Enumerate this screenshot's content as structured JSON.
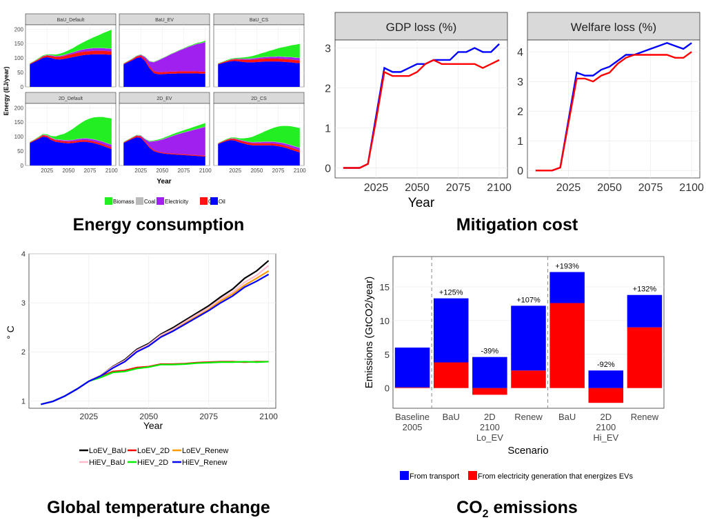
{
  "titles": {
    "energy": "Energy consumption",
    "mitigation": "Mitigation cost",
    "temperature": "Global temperature change",
    "co2_prefix": "CO",
    "co2_sub": "2",
    "co2_suffix": " emissions"
  },
  "chart_data": [
    {
      "id": "energy",
      "type": "area",
      "ylabel": "Energy (EJ/year)",
      "xlabel": "Year",
      "x": [
        2005,
        2010,
        2015,
        2020,
        2025,
        2030,
        2035,
        2040,
        2045,
        2050,
        2055,
        2060,
        2065,
        2070,
        2075,
        2080,
        2085,
        2090,
        2095,
        2100
      ],
      "xticks": [
        2025,
        2050,
        2075,
        2100
      ],
      "yticks": [
        0,
        50,
        100,
        150,
        200
      ],
      "ylim": [
        0,
        215
      ],
      "legend": [
        "Biomass",
        "Coal",
        "Electricity",
        "Gas",
        "Oil"
      ],
      "colors": {
        "Biomass": "#22ee22",
        "Coal": "#bbbbbb",
        "Electricity": "#a020f0",
        "Gas": "#ff1111",
        "Oil": "#0000ff"
      },
      "facets": [
        {
          "name": "BaU_Default",
          "oil": [
            78,
            85,
            92,
            100,
            103,
            100,
            96,
            95,
            97,
            100,
            103,
            106,
            109,
            111,
            112,
            113,
            113,
            113,
            112,
            111
          ],
          "gas": [
            2,
            3,
            4,
            5,
            6,
            7,
            8,
            9,
            10,
            11,
            11,
            12,
            12,
            12,
            12,
            12,
            12,
            12,
            12,
            12
          ],
          "elec": [
            0,
            0,
            0,
            1,
            1,
            2,
            2,
            3,
            3,
            4,
            5,
            6,
            7,
            8,
            9,
            9,
            9,
            9,
            9,
            9
          ],
          "coal": [
            1,
            1,
            1,
            1,
            1,
            1,
            1,
            1,
            1,
            1,
            1,
            1,
            1,
            1,
            1,
            1,
            1,
            1,
            1,
            1
          ],
          "bio": [
            1,
            1,
            2,
            2,
            2,
            3,
            5,
            7,
            9,
            11,
            14,
            18,
            22,
            27,
            32,
            38,
            44,
            51,
            58,
            65
          ]
        },
        {
          "name": "BaU_EV",
          "oil": [
            78,
            85,
            92,
            100,
            103,
            90,
            65,
            48,
            44,
            44,
            45,
            46,
            46,
            47,
            47,
            47,
            47,
            47,
            46,
            46
          ],
          "gas": [
            2,
            3,
            4,
            5,
            6,
            7,
            7,
            7,
            7,
            7,
            7,
            7,
            7,
            7,
            7,
            7,
            7,
            7,
            7,
            7
          ],
          "elec": [
            0,
            0,
            0,
            1,
            2,
            6,
            16,
            30,
            40,
            47,
            53,
            60,
            66,
            72,
            78,
            84,
            89,
            94,
            98,
            102
          ],
          "coal": [
            1,
            1,
            1,
            1,
            1,
            1,
            1,
            1,
            1,
            1,
            1,
            1,
            1,
            1,
            1,
            1,
            1,
            1,
            1,
            1
          ],
          "bio": [
            1,
            1,
            1,
            1,
            1,
            1,
            1,
            1,
            1,
            1,
            1,
            1,
            1,
            1,
            1,
            2,
            2,
            3,
            3,
            4
          ]
        },
        {
          "name": "BaU_CS",
          "oil": [
            78,
            82,
            86,
            89,
            90,
            88,
            86,
            85,
            85,
            86,
            87,
            88,
            88,
            88,
            88,
            87,
            86,
            85,
            83,
            82
          ],
          "gas": [
            2,
            3,
            4,
            5,
            6,
            7,
            8,
            9,
            9,
            10,
            10,
            10,
            10,
            10,
            10,
            10,
            10,
            10,
            10,
            10
          ],
          "elec": [
            0,
            0,
            0,
            1,
            1,
            2,
            3,
            3,
            4,
            4,
            5,
            5,
            6,
            6,
            7,
            7,
            7,
            8,
            8,
            8
          ],
          "coal": [
            1,
            1,
            1,
            1,
            1,
            1,
            1,
            1,
            1,
            1,
            1,
            1,
            1,
            1,
            1,
            1,
            1,
            1,
            1,
            1
          ],
          "bio": [
            1,
            1,
            2,
            2,
            2,
            3,
            4,
            6,
            8,
            10,
            13,
            16,
            20,
            24,
            28,
            32,
            36,
            40,
            44,
            48
          ]
        },
        {
          "name": "2D_Default",
          "oil": [
            78,
            85,
            92,
            100,
            98,
            88,
            82,
            80,
            78,
            77,
            78,
            80,
            82,
            82,
            80,
            77,
            73,
            68,
            62,
            57
          ],
          "gas": [
            2,
            3,
            4,
            5,
            5,
            6,
            6,
            6,
            6,
            6,
            6,
            6,
            6,
            6,
            6,
            6,
            6,
            6,
            6,
            6
          ],
          "elec": [
            0,
            0,
            0,
            1,
            1,
            2,
            2,
            3,
            3,
            4,
            4,
            5,
            5,
            6,
            6,
            7,
            7,
            8,
            8,
            9
          ],
          "coal": [
            1,
            1,
            1,
            1,
            1,
            1,
            1,
            1,
            1,
            1,
            1,
            1,
            1,
            1,
            1,
            1,
            1,
            1,
            1,
            1
          ],
          "bio": [
            1,
            1,
            2,
            2,
            3,
            5,
            10,
            16,
            22,
            30,
            38,
            46,
            54,
            62,
            70,
            76,
            81,
            85,
            88,
            90
          ]
        },
        {
          "name": "2D_EV",
          "oil": [
            78,
            85,
            92,
            98,
            96,
            80,
            62,
            50,
            45,
            42,
            40,
            39,
            38,
            37,
            36,
            35,
            34,
            33,
            32,
            31
          ],
          "gas": [
            2,
            3,
            4,
            5,
            5,
            5,
            4,
            4,
            3,
            3,
            3,
            3,
            3,
            3,
            3,
            3,
            3,
            3,
            3,
            3
          ],
          "elec": [
            0,
            0,
            0,
            1,
            2,
            6,
            16,
            30,
            38,
            45,
            52,
            58,
            64,
            70,
            75,
            80,
            85,
            90,
            95,
            100
          ],
          "coal": [
            1,
            1,
            1,
            1,
            1,
            1,
            1,
            1,
            1,
            1,
            1,
            1,
            1,
            1,
            1,
            1,
            1,
            1,
            1,
            1
          ],
          "bio": [
            1,
            1,
            1,
            1,
            1,
            1,
            2,
            2,
            3,
            3,
            4,
            5,
            6,
            6,
            7,
            8,
            9,
            10,
            11,
            12
          ]
        },
        {
          "name": "2D_CS",
          "oil": [
            74,
            80,
            85,
            88,
            86,
            80,
            76,
            72,
            70,
            70,
            70,
            70,
            70,
            69,
            67,
            64,
            60,
            55,
            50,
            45
          ],
          "gas": [
            2,
            3,
            4,
            5,
            6,
            7,
            7,
            7,
            7,
            7,
            7,
            7,
            7,
            7,
            7,
            7,
            7,
            7,
            7,
            7
          ],
          "elec": [
            0,
            0,
            0,
            1,
            1,
            2,
            2,
            3,
            3,
            4,
            4,
            5,
            5,
            6,
            6,
            7,
            7,
            8,
            8,
            9
          ],
          "coal": [
            1,
            1,
            1,
            1,
            1,
            1,
            1,
            1,
            1,
            1,
            1,
            1,
            1,
            1,
            1,
            1,
            1,
            1,
            1,
            1
          ],
          "bio": [
            1,
            1,
            2,
            2,
            3,
            4,
            8,
            13,
            18,
            24,
            30,
            36,
            42,
            48,
            54,
            58,
            62,
            65,
            67,
            68
          ]
        }
      ]
    },
    {
      "id": "mitigation",
      "type": "line",
      "xlabel": "Year",
      "x": [
        2005,
        2010,
        2015,
        2020,
        2025,
        2030,
        2035,
        2040,
        2045,
        2050,
        2055,
        2060,
        2065,
        2070,
        2075,
        2080,
        2085,
        2090,
        2095,
        2100
      ],
      "xticks": [
        2025,
        2050,
        2075,
        2100
      ],
      "facets": [
        {
          "name": "GDP loss (%)",
          "ylim": [
            0,
            3.2
          ],
          "yticks": [
            0,
            1,
            2,
            3
          ],
          "series": [
            {
              "name": "Blue",
              "color": "#0000ff",
              "values": [
                0,
                0,
                0,
                0.1,
                1.3,
                2.5,
                2.4,
                2.4,
                2.5,
                2.6,
                2.6,
                2.7,
                2.7,
                2.7,
                2.9,
                2.9,
                3.0,
                2.9,
                2.9,
                3.1
              ]
            },
            {
              "name": "Red",
              "color": "#ff0000",
              "values": [
                0,
                0,
                0,
                0.1,
                1.2,
                2.4,
                2.3,
                2.3,
                2.3,
                2.4,
                2.6,
                2.7,
                2.6,
                2.6,
                2.6,
                2.6,
                2.6,
                2.5,
                2.6,
                2.7
              ]
            }
          ]
        },
        {
          "name": "Welfare loss (%)",
          "ylim": [
            0,
            4.4
          ],
          "yticks": [
            0,
            1,
            2,
            3,
            4
          ],
          "series": [
            {
              "name": "Blue",
              "color": "#0000ff",
              "values": [
                0,
                0,
                0,
                0.1,
                1.7,
                3.3,
                3.2,
                3.2,
                3.4,
                3.5,
                3.7,
                3.9,
                3.9,
                4.0,
                4.1,
                4.2,
                4.3,
                4.2,
                4.1,
                4.3
              ]
            },
            {
              "name": "Red",
              "color": "#ff0000",
              "values": [
                0,
                0,
                0,
                0.1,
                1.6,
                3.1,
                3.1,
                3.0,
                3.2,
                3.3,
                3.6,
                3.8,
                3.9,
                3.9,
                3.9,
                3.9,
                3.9,
                3.8,
                3.8,
                4.0
              ]
            }
          ]
        }
      ]
    },
    {
      "id": "temperature",
      "type": "line",
      "xlabel": "Year",
      "ylabel": "° C",
      "xlim": [
        2005,
        2100
      ],
      "ylim": [
        0.85,
        4.0
      ],
      "xticks": [
        2025,
        2050,
        2075,
        2100
      ],
      "yticks": [
        1,
        2,
        3,
        4
      ],
      "x": [
        2005,
        2010,
        2015,
        2020,
        2025,
        2030,
        2035,
        2040,
        2045,
        2050,
        2055,
        2060,
        2065,
        2070,
        2075,
        2080,
        2085,
        2090,
        2095,
        2100
      ],
      "series": [
        {
          "name": "LoEV_BaU",
          "color": "#000000",
          "values": [
            0.93,
            0.99,
            1.1,
            1.24,
            1.4,
            1.52,
            1.7,
            1.84,
            2.05,
            2.17,
            2.36,
            2.49,
            2.64,
            2.79,
            2.94,
            3.12,
            3.28,
            3.5,
            3.65,
            3.86
          ]
        },
        {
          "name": "LoEV_2D",
          "color": "#ff0000",
          "values": [
            0.93,
            0.99,
            1.1,
            1.24,
            1.4,
            1.5,
            1.6,
            1.62,
            1.68,
            1.7,
            1.75,
            1.75,
            1.76,
            1.78,
            1.79,
            1.8,
            1.8,
            1.79,
            1.8,
            1.8
          ]
        },
        {
          "name": "LoEV_Renew",
          "color": "#ff9900",
          "values": [
            0.93,
            0.99,
            1.1,
            1.24,
            1.4,
            1.52,
            1.69,
            1.82,
            2.02,
            2.14,
            2.32,
            2.44,
            2.58,
            2.72,
            2.86,
            3.04,
            3.18,
            3.36,
            3.5,
            3.65
          ]
        },
        {
          "name": "HiEV_BaU",
          "color": "#ffbbcc",
          "values": [
            0.93,
            0.99,
            1.1,
            1.24,
            1.4,
            1.52,
            1.69,
            1.82,
            2.03,
            2.15,
            2.34,
            2.46,
            2.61,
            2.76,
            2.9,
            3.08,
            3.22,
            3.42,
            3.56,
            3.76
          ]
        },
        {
          "name": "HiEV_2D",
          "color": "#00ee00",
          "values": [
            0.93,
            0.99,
            1.1,
            1.24,
            1.4,
            1.48,
            1.58,
            1.6,
            1.66,
            1.69,
            1.74,
            1.74,
            1.75,
            1.77,
            1.78,
            1.79,
            1.79,
            1.8,
            1.79,
            1.8
          ]
        },
        {
          "name": "HiEV_Renew",
          "color": "#0000ff",
          "values": [
            0.93,
            0.99,
            1.1,
            1.24,
            1.4,
            1.51,
            1.67,
            1.8,
            2.0,
            2.12,
            2.3,
            2.42,
            2.56,
            2.7,
            2.84,
            3.0,
            3.14,
            3.32,
            3.44,
            3.58
          ]
        }
      ]
    },
    {
      "id": "co2",
      "type": "bar",
      "xlabel": "Scenario",
      "ylabel": "Emissions (GtCO2/year)",
      "ylim": [
        -3,
        19.5
      ],
      "yticks": [
        0,
        5,
        10,
        15
      ],
      "categories": [
        "Baseline\n2005",
        "BaU",
        "2D\n2100\nLo_EV",
        "Renew",
        "BaU",
        "2D\n2100\nHi_EV",
        "Renew"
      ],
      "series": [
        {
          "name": "From transport",
          "color": "#0000ff",
          "values": [
            5.9,
            9.5,
            4.6,
            9.6,
            4.6,
            2.6,
            4.8
          ]
        },
        {
          "name": "From electricity generation that energizes EVs",
          "color": "#ff0000",
          "values": [
            0.1,
            3.8,
            -1.0,
            2.6,
            12.6,
            -2.2,
            9.0
          ]
        }
      ],
      "annotations": [
        "",
        "+125%",
        "-39%",
        "+107%",
        "+193%",
        "-92%",
        "+132%"
      ]
    }
  ]
}
